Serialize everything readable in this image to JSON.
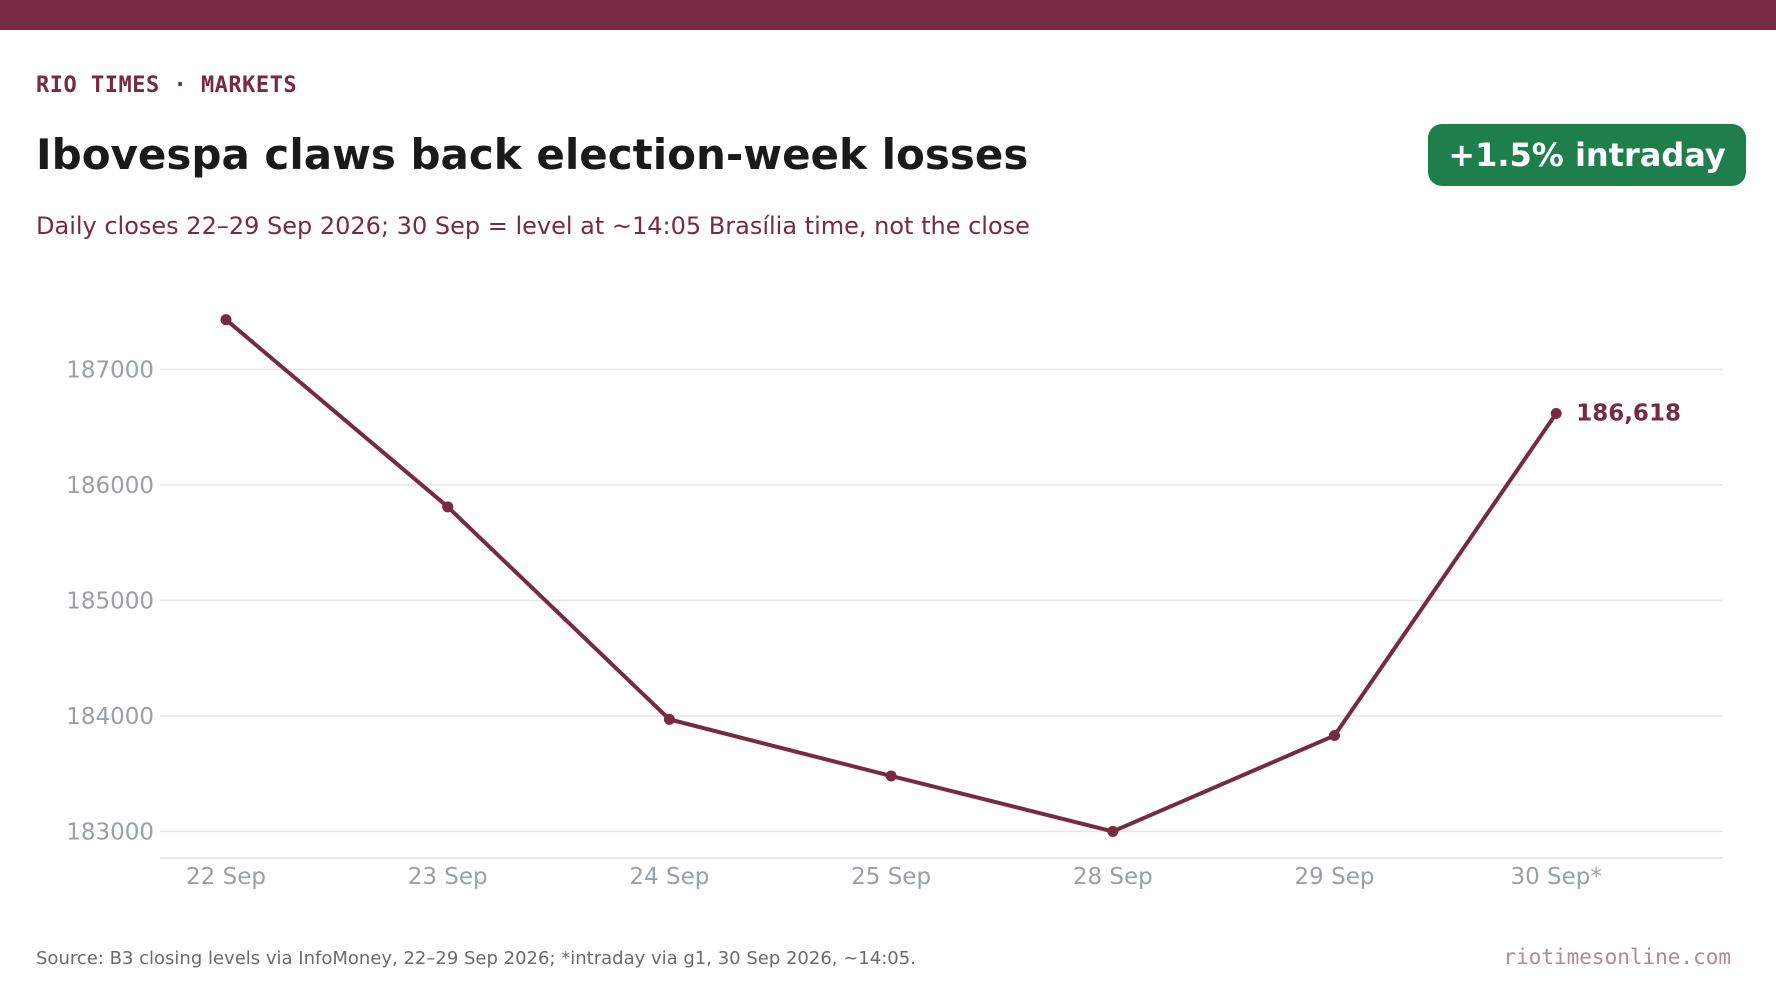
{
  "header": {
    "kicker": "RIO TIMES · MARKETS",
    "title": "Ibovespa claws back election-week losses",
    "badge": "+1.5% intraday",
    "subtitle": "Daily closes 22–29 Sep 2026; 30 Sep = level at ~14:05 Brasília time, not the close"
  },
  "chart_data": {
    "type": "line",
    "title": "Ibovespa claws back election-week losses",
    "xlabel": "",
    "ylabel": "",
    "categories": [
      "22 Sep",
      "23 Sep",
      "24 Sep",
      "25 Sep",
      "28 Sep",
      "29 Sep",
      "30 Sep*"
    ],
    "series": [
      {
        "values": [
          187430,
          185810,
          183970,
          183480,
          183000,
          183830,
          186618
        ]
      }
    ],
    "yticks": [
      183000,
      184000,
      185000,
      186000,
      187000
    ],
    "ylim": [
      182770,
      187860
    ],
    "grid": true,
    "end_label": "186,618",
    "colors": {
      "line": "#782B40",
      "grid": "#e6e6e6",
      "tick_text": "#9aa0a8",
      "badge": "#1F7F4C"
    }
  },
  "footer": {
    "source": "Source: B3 closing levels via InfoMoney, 22–29 Sep 2026; *intraday via g1, 30 Sep 2026, ~14:05.",
    "site": "riotimesonline.com"
  }
}
